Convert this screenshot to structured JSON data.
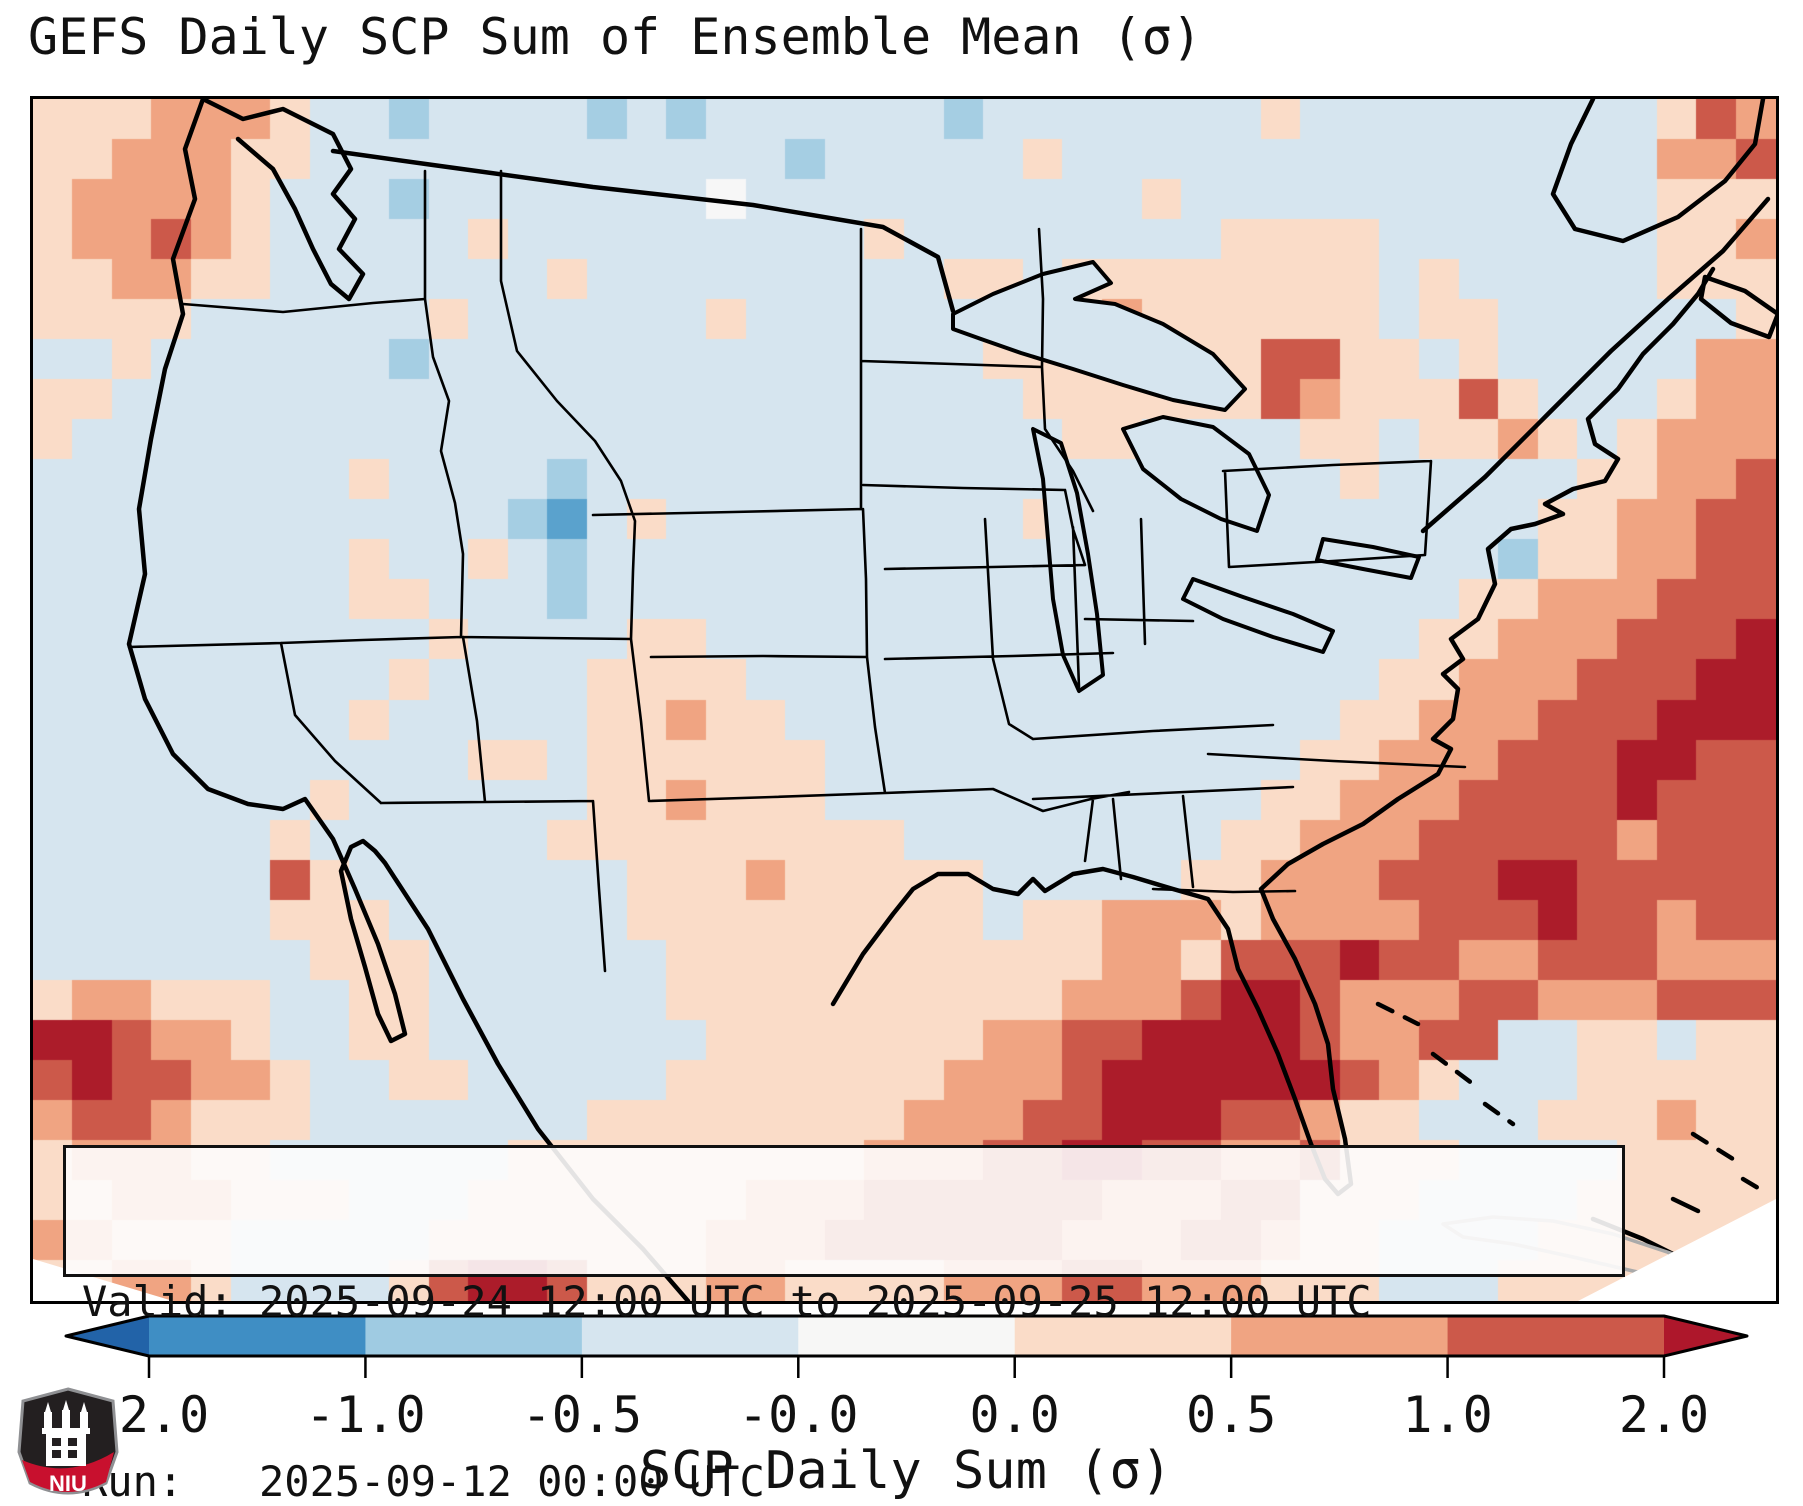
{
  "title": "GEFS Daily SCP Sum of Ensemble Mean (σ)",
  "info_box": {
    "line1": "Valid: 2025-09-24 12:00 UTC to 2025-09-25 12:00 UTC",
    "line2": "Run:   2025-09-12 00:00 UTC"
  },
  "colorbar": {
    "label": "SCP Daily Sum (σ)",
    "ticks": [
      "-2.0",
      "-1.0",
      "-0.5",
      "-0.0",
      "0.0",
      "0.5",
      "1.0",
      "2.0"
    ],
    "segment_colors": [
      "#3f8ec4",
      "#9fcbe2",
      "#d6e5ef",
      "#f7f7f6",
      "#fadcc8",
      "#f0a482",
      "#cc594a"
    ],
    "under_arrow_color": "#2263a8",
    "over_arrow_color": "#ae172b",
    "outline_color": "#000000"
  },
  "logo": {
    "text": "NIU",
    "red": "#c8102e",
    "dark": "#231f20",
    "border_gray": "#8f9093"
  },
  "chart_data": {
    "type": "heatmap",
    "title": "GEFS Daily SCP Sum of Ensemble Mean (σ)",
    "colorbar_label": "SCP Daily Sum (σ)",
    "colorbar_ticks": [
      -2.0,
      -1.0,
      -0.5,
      -0.0,
      0.0,
      0.5,
      1.0,
      2.0
    ],
    "units": "sigma (standardized anomaly)",
    "region": "CONUS / North America, Lambert-style projection",
    "valid_period": "2025-09-24 12:00 UTC to 2025-09-25 12:00 UTC",
    "run_time": "2025-09-12 00:00 UTC",
    "legend_position": "bottom horizontal colorbar with under/over arrows",
    "palette": {
      ".": "#d6e5ef",
      "c": "#a5cee3",
      "b": "#5aa2cd",
      "w": "#f7f7f7",
      "e": "#fadcc8",
      "f": "#f0a482",
      "g": "#cc594a",
      "h": "#ac1c2a"
    },
    "bin_meaning_sigma": {
      ".": "-0.5 to 0.0",
      "c": "-1.0 to -0.5",
      "b": "-2.0 to -1.0",
      "w": "near 0.0",
      "e": "0.0 to 0.5",
      "f": "0.5 to 1.0",
      "g": "1.0 to 2.0",
      "h": "greater than 2.0"
    },
    "grid_cols": 44,
    "grid_rows_count": 30,
    "grid_rows": [
      "eeefffe..c....c.c......c.......e.........egf",
      "eefffee............c.....e...............ffg",
      "effffe...c.......w..........e............eee",
      "effgfe.....e.........e........eeee.......eef",
      "eeffee.......e.........ee.eeeeeeee.e.....eee",
      "eeee......e......e......eeefeeeeee.ee......e",
      "..e......c..............eeeffeeggee.e.....ff",
      "ee.......................eeeeeegfeeege...eff",
      "e.........................ee....ee.eefe.efff",
      "........e....c...................e.....eeffg",
      "............cb.e.........e............eeffgg",
      "........e..e.c.......................ceeffgg",
      "........ee...c......................eefffggg",
      "..........e....ee..................eefffgggh",
      ".........e....eeee................eefffggghh",
      "........e.....eefee..............eefffggghhh",
      "...........ee.eeeeee............eefffggghhgg",
      ".......e......eefeee...........eefffgggghggg",
      "......e......eeeeeeeee........eefffgggggfggg",
      "......ge.......eeefeeeee.....eefffggghhggggg",
      "......eee......eeeeeeeee.eefffeffffggghggfgg",
      ".......eee......eeeeeeeeeeeffeggghggffgggfff",
      "effeee..ee......eeeeeeeeeefffghhgfffggfffggg",
      "hhgffe..ee.......eeeeeeeffgghhhhgffgg..ee.ee",
      "ghggffe..ee.....eeeeeeefffghhhhhhgfe...eeeee",
      "fggfeee.......eeeeeeeefffgghhhggfee...eeefee",
      "efffee......eeeeeeeeefffgghhggffgeee....eeee",
      "eefffeee...eeeeeeefffggggggfffggeee....eeeee",
      "ffeee.....eeeeeeefffggggggfffggfee....eeeeee",
      "eeffe....eghhgeeeffeeeefffggfffeee...eeeeeee"
    ]
  }
}
